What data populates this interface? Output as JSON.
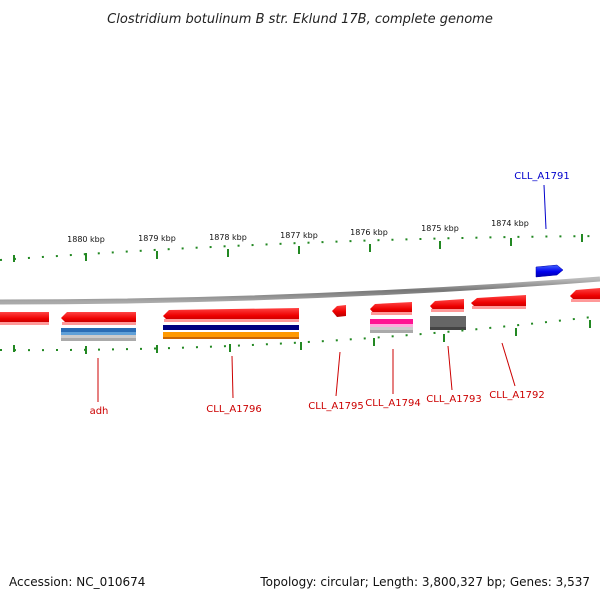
{
  "title": "Clostridium botulinum B str. Eklund 17B, complete genome",
  "footer": {
    "accession": "Accession: NC_010674",
    "summary": "Topology: circular; Length: 3,800,327 bp; Genes: 3,537"
  },
  "scale_labels": [
    "1880 kbp",
    "1879 kbp",
    "1878 kbp",
    "1877 kbp",
    "1876 kbp",
    "1875 kbp",
    "1874 kbp"
  ],
  "gene_labels": [
    {
      "name": "adh",
      "color": "#cc0000"
    },
    {
      "name": "CLL_A1796",
      "color": "#cc0000"
    },
    {
      "name": "CLL_A1795",
      "color": "#cc0000"
    },
    {
      "name": "CLL_A1794",
      "color": "#cc0000"
    },
    {
      "name": "CLL_A1793",
      "color": "#cc0000"
    },
    {
      "name": "CLL_A1792",
      "color": "#cc0000"
    },
    {
      "name": "CLL_A1791",
      "color": "#0000cc"
    }
  ],
  "colors": {
    "forward_gene": "#0000ee",
    "reverse_gene": "#ee0000",
    "backbone": "#888888",
    "ticks": "#228822"
  }
}
